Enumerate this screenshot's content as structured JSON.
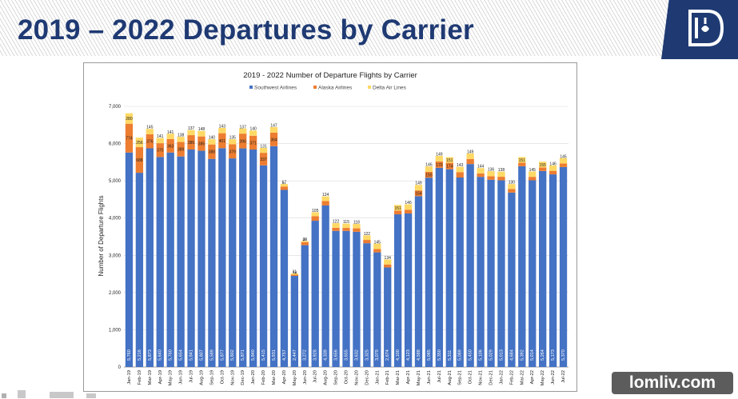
{
  "slide": {
    "title": "2019 – 2022 Departures by Carrier",
    "watermark": "lomliv.com",
    "colors": {
      "title": "#1f3a73",
      "logo_bg": "#1f3a73"
    },
    "icons": [
      "city-seal-logo-icon"
    ]
  },
  "chart_data": {
    "type": "bar",
    "stacked": true,
    "title": "2019 - 2022 Number of Departure Flights by Carrier",
    "xlabel": "",
    "ylabel": "Number of Departure Flights",
    "ylim": [
      0,
      7000
    ],
    "yticks": [
      "0",
      "1,000",
      "2,000",
      "3,000",
      "4,000",
      "5,000",
      "6,000",
      "7,000"
    ],
    "grid": true,
    "legend_position": "top",
    "categories": [
      "Jan-19",
      "Feb-19",
      "Mar-19",
      "Apr-19",
      "May-19",
      "Jun-19",
      "Jul-19",
      "Aug-19",
      "Sep-19",
      "Oct-19",
      "Nov-19",
      "Dec-19",
      "Jan-20",
      "Feb-20",
      "Mar-20",
      "Apr-20",
      "May-20",
      "Jun-20",
      "Jul-20",
      "Aug-20",
      "Sep-20",
      "Oct-20",
      "Nov-20",
      "Dec-20",
      "Jan-21",
      "Feb-21",
      "Mar-21",
      "Apr-21",
      "May-21",
      "Jun-21",
      "Jul-21",
      "Aug-21",
      "Sep-21",
      "Oct-21",
      "Nov-21",
      "Dec-21",
      "Jan-22",
      "Feb-22",
      "Mar-22",
      "Apr-22",
      "May-22",
      "Jun-22",
      "Jul-22"
    ],
    "series": [
      {
        "name": "Southwest Airlines",
        "color": "#4472c4",
        "values": [
          5760,
          5216,
          5873,
          5640,
          5760,
          5654,
          5841,
          5807,
          5589,
          5877,
          5602,
          5871,
          5840,
          5415,
          5931,
          4757,
          2447,
          3272,
          3928,
          4339,
          3656,
          3655,
          3632,
          3325,
          3079,
          2674,
          4100,
          4123,
          4588,
          5085,
          5350,
          5311,
          5089,
          5450,
          5106,
          5029,
          5013,
          4684,
          5392,
          5014,
          5264,
          5173,
          5370
        ]
      },
      {
        "name": "Alaska Airlines",
        "color": "#ed7d31",
        "values": [
          774,
          688,
          376,
          370,
          363,
          389,
          385,
          385,
          388,
          401,
          379,
          396,
          371,
          337,
          364,
          91,
          34,
          81,
          124,
          119,
          84,
          80,
          92,
          88,
          88,
          80,
          101,
          101,
          154,
          155,
          170,
          174,
          144,
          137,
          92,
          93,
          96,
          99,
          96,
          93,
          96,
          95,
          94
        ],
        "labels": [
          "774",
          "688",
          "376",
          "370",
          "363",
          "389",
          "385",
          "385",
          "388",
          "401",
          "379",
          "396",
          "371",
          "337",
          "364",
          "91",
          "34",
          "81",
          "124",
          "119",
          "84",
          "80",
          "92",
          "88",
          "88",
          "80",
          "101",
          "101",
          "154",
          "155",
          "170",
          "174",
          "144",
          "137",
          "92",
          "93",
          "96",
          "99",
          "96",
          "93",
          "96",
          "95",
          "94"
        ]
      },
      {
        "name": "Delta Air Lines",
        "color": "#ffd966",
        "values": [
          280,
          256,
          145,
          141,
          141,
          138,
          137,
          148,
          140,
          143,
          135,
          137,
          140,
          131,
          147,
          67,
          31,
          30,
          105,
          124,
          122,
          115,
          118,
          122,
          145,
          134,
          151,
          146,
          149,
          146,
          149,
          151,
          143,
          149,
          144,
          136,
          138,
          130,
          151,
          145,
          155,
          146,
          145
        ],
        "labels": [
          "280",
          "256",
          "145",
          "141",
          "141",
          "138",
          "137",
          "148",
          "140",
          "143",
          "135",
          "137",
          "140",
          "131",
          "147",
          "67",
          "31",
          "30",
          "105",
          "124",
          "122",
          "115",
          "118",
          "122",
          "145",
          "134",
          "151",
          "146",
          "149",
          "146",
          "149",
          "151",
          "143",
          "149",
          "144",
          "136",
          "138",
          "130",
          "151",
          "145",
          "155",
          "146",
          "145"
        ]
      }
    ]
  }
}
